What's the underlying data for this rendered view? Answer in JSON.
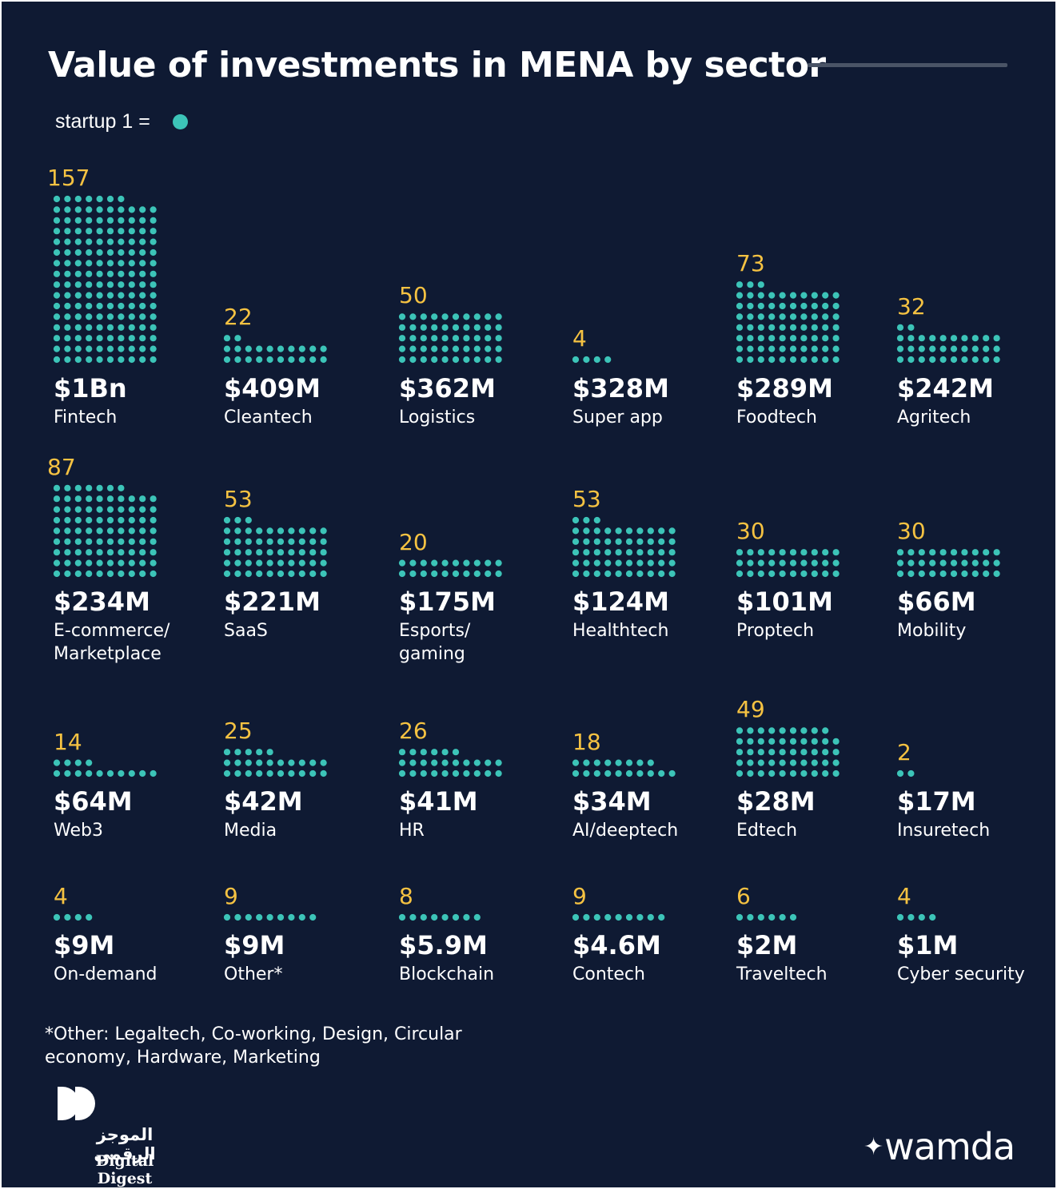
{
  "title": "Value of investments in MENA by sector",
  "legend": {
    "label": "startup 1 ="
  },
  "colors": {
    "background": "#0f1a33",
    "dot": "#3cc4b8",
    "count": "#f5c242",
    "text": "#ffffff"
  },
  "chart_data": {
    "type": "dot-matrix",
    "title": "Value of investments in MENA by sector",
    "unit_legend": "startup 1 =",
    "categories": [
      "Fintech",
      "Cleantech",
      "Logistics",
      "Super app",
      "Foodtech",
      "Agritech",
      "E-commerce/\nMarketplace",
      "SaaS",
      "Esports/\ngaming",
      "Healthtech",
      "Proptech",
      "Mobility",
      "Web3",
      "Media",
      "HR",
      "AI/deeptech",
      "Edtech",
      "Insuretech",
      "On-demand",
      "Other*",
      "Blockchain",
      "Contech",
      "Traveltech",
      "Cyber security"
    ],
    "startups": [
      157,
      22,
      50,
      4,
      73,
      32,
      87,
      53,
      20,
      53,
      30,
      30,
      14,
      25,
      26,
      18,
      49,
      2,
      4,
      9,
      8,
      9,
      6,
      4
    ],
    "investment_labels": [
      "$1Bn",
      "$409M",
      "$362M",
      "$328M",
      "$289M",
      "$242M",
      "$234M",
      "$221M",
      "$175M",
      "$124M",
      "$101M",
      "$66M",
      "$64M",
      "$42M",
      "$41M",
      "$34M",
      "$28M",
      "$17M",
      "$9M",
      "$9M",
      "$5.9M",
      "$4.6M",
      "$2M",
      "$1M"
    ]
  },
  "footnote": "*Other: Legaltech, Co-working, Design, Circular economy, Hardware, Marketing",
  "branding": {
    "left_arabic": "الموجز الرقمي",
    "left_english": "Digital Digest",
    "left_logo_icon": "double-d-logo-icon",
    "right_logo": "wamda",
    "right_star_icon": "four-point-star-icon"
  }
}
